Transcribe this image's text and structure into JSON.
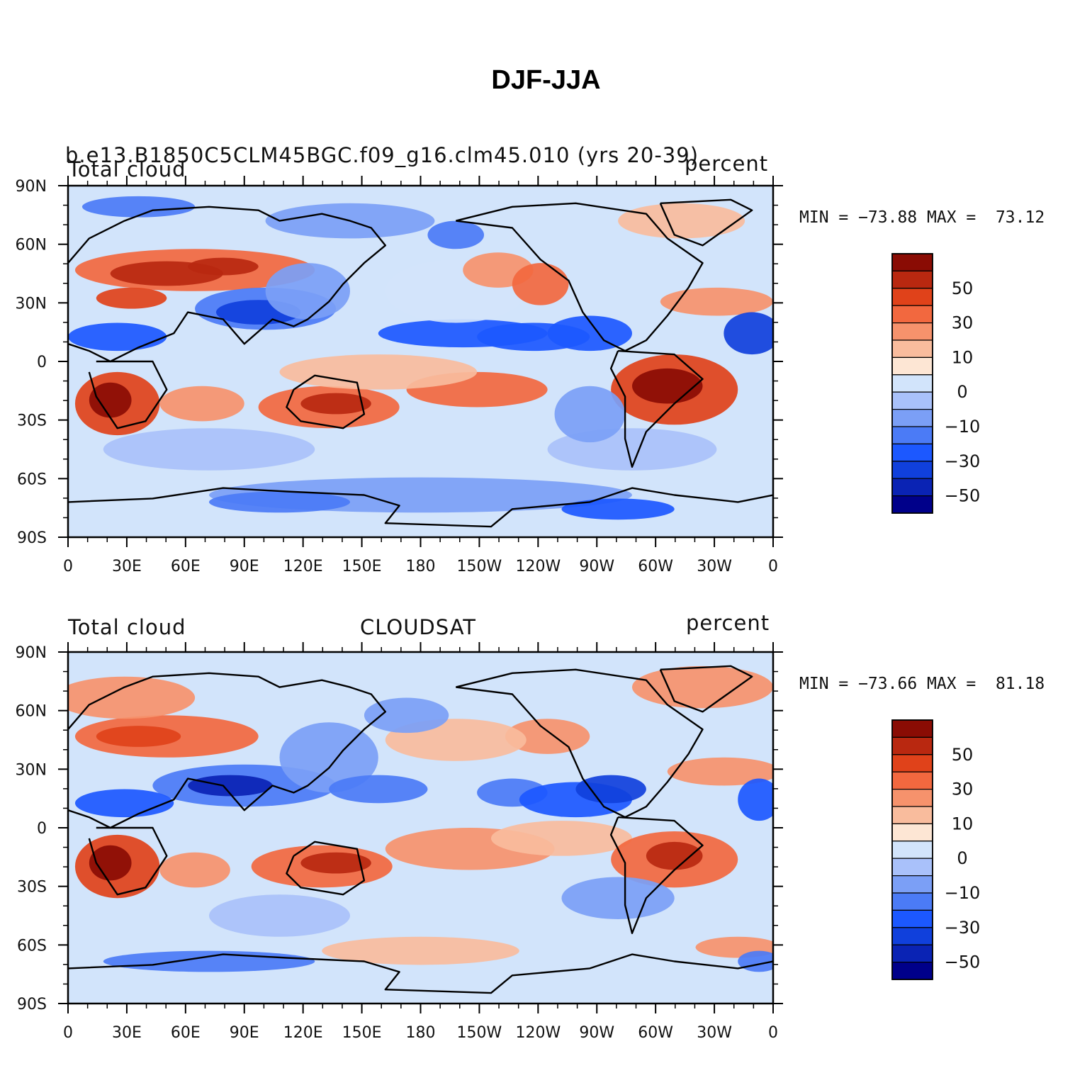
{
  "figure": {
    "title": "DJF-JJA"
  },
  "palette": [
    "#00008a",
    "#0a23b4",
    "#1040dc",
    "#1c58ff",
    "#4b7bf6",
    "#7b9ff6",
    "#a9c1fa",
    "#d2e4fb",
    "#fde6d4",
    "#f9bc9d",
    "#f6926c",
    "#f2683f",
    "#e0421a",
    "#b92810",
    "#8a0c04"
  ],
  "colorbar": {
    "labels": [
      "50",
      "30",
      "10",
      "0",
      "−10",
      "−30",
      "−50"
    ]
  },
  "axes": {
    "lat_ticks": [
      "90N",
      "60N",
      "30N",
      "0",
      "30S",
      "60S",
      "90S"
    ],
    "lon_ticks": [
      "0",
      "30E",
      "60E",
      "90E",
      "120E",
      "150E",
      "180",
      "150W",
      "120W",
      "90W",
      "60W",
      "30W",
      "0"
    ]
  },
  "panels": [
    {
      "id": "top",
      "header_left": "Total cloud",
      "header_center": "b.e13.B1850C5CLM45BGC.f09_g16.clm45.010 (yrs 20-39)",
      "header_right": "percent",
      "minmax": "MIN = −73.88 MAX =  73.12"
    },
    {
      "id": "bottom",
      "header_left": "Total cloud",
      "header_center": "CLOUDSAT",
      "header_right": "percent",
      "minmax": "MIN = −73.66 MAX =  81.18"
    }
  ]
}
